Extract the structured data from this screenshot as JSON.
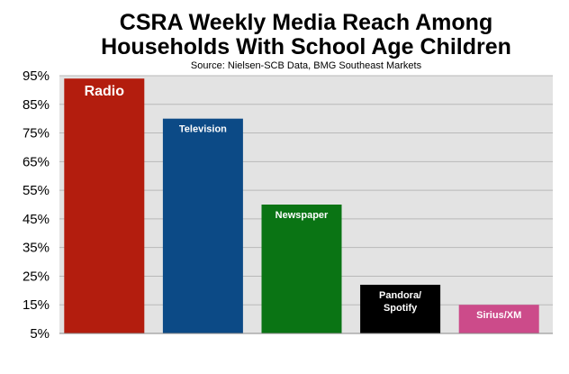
{
  "chart_data": {
    "type": "bar",
    "title_lines": [
      "CSRA Weekly Media Reach Among",
      "Households With School Age Children"
    ],
    "subtitle": "Source: Nielsen-SCB Data, BMG Southeast Markets",
    "categories": [
      "Radio",
      "Television",
      "Newspaper",
      "Pandora/ Spotify",
      "Sirius/XM"
    ],
    "category_label_lines": [
      [
        "Radio"
      ],
      [
        "Television"
      ],
      [
        "Newspaper"
      ],
      [
        "Pandora/",
        "Spotify"
      ],
      [
        "Sirius/XM"
      ]
    ],
    "values": [
      94,
      80,
      50,
      22,
      15
    ],
    "colors": [
      "#b31d0e",
      "#0c4a86",
      "#0a7414",
      "#000000",
      "#cc4b8a"
    ],
    "yticks": [
      "95%",
      "85%",
      "75%",
      "65%",
      "55%",
      "45%",
      "35%",
      "25%",
      "15%",
      "5%"
    ],
    "ylim": [
      5,
      95
    ],
    "grid": true,
    "plot_background": "#e3e3e3",
    "xlabel": "",
    "ylabel": ""
  }
}
